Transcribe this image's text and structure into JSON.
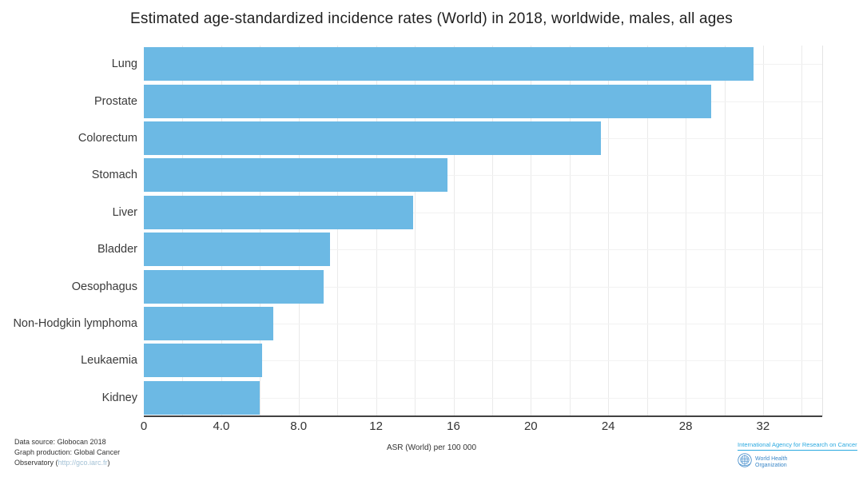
{
  "title": "Estimated age-standardized incidence rates (World) in 2018, worldwide, males, all ages",
  "chart_data": {
    "type": "bar",
    "orientation": "horizontal",
    "title": "Estimated age-standardized incidence rates (World) in 2018, worldwide, males, all ages",
    "categories": [
      "Lung",
      "Prostate",
      "Colorectum",
      "Stomach",
      "Liver",
      "Bladder",
      "Oesophagus",
      "Non-Hodgkin lymphoma",
      "Leukaemia",
      "Kidney"
    ],
    "values": [
      31.5,
      29.3,
      23.6,
      15.7,
      13.9,
      9.6,
      9.3,
      6.7,
      6.1,
      6.0
    ],
    "xlabel": "ASR (World) per 100 000",
    "ylabel": "",
    "xlim": [
      0,
      35.1
    ],
    "xticks": [
      {
        "value": 0,
        "label": "0"
      },
      {
        "value": 4,
        "label": "4.0"
      },
      {
        "value": 8,
        "label": "8.0"
      },
      {
        "value": 12,
        "label": "12"
      },
      {
        "value": 16,
        "label": "16"
      },
      {
        "value": 20,
        "label": "20"
      },
      {
        "value": 24,
        "label": "24"
      },
      {
        "value": 28,
        "label": "28"
      },
      {
        "value": 32,
        "label": "32"
      }
    ],
    "gridline_step": 2,
    "grid": true,
    "legend": false,
    "bar_color": "#6cb9e4"
  },
  "footer": {
    "source_line1": "Data source: Globocan 2018",
    "source_line2": "Graph production: Global Cancer",
    "source_line3_prefix": "Observatory (",
    "source_line3_url": "http://gco.iarc.fr",
    "source_line3_suffix": ")",
    "axis_note": "ASR (World) per 100 000",
    "iarc_label": "International Agency for Research on Cancer",
    "who_line1": "World Health",
    "who_line2": "Organization"
  },
  "colors": {
    "bar": "#6cb9e4",
    "axis": "#424242",
    "gridline": "#eaeaea",
    "iarc_blue": "#2aa9e0",
    "who_blue": "#3a87c8",
    "footer_link": "#a4c2d6"
  }
}
